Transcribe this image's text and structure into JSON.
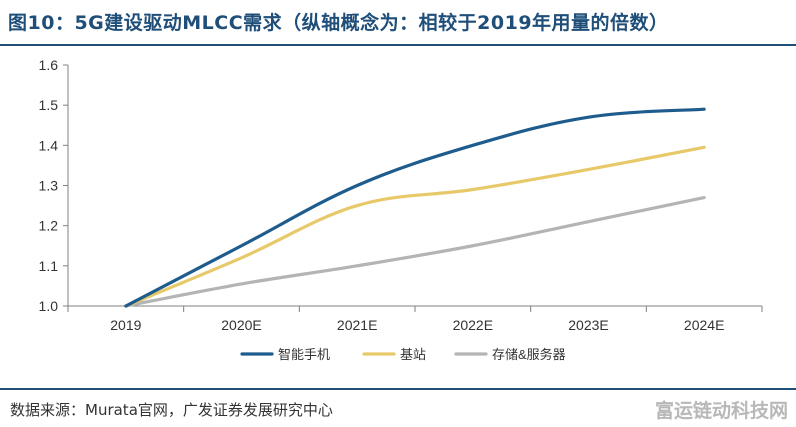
{
  "header": {
    "title": "图10：5G建设驱动MLCC需求（纵轴概念为：相较于2019年用量的倍数）"
  },
  "footer": {
    "source": "数据来源：Murata官网，广发证券发展研究中心",
    "watermark": "富运链动科技网"
  },
  "chart_data": {
    "type": "line",
    "title": "5G建设驱动MLCC需求（纵轴概念为：相较于2019年用量的倍数）",
    "xlabel": "",
    "ylabel": "",
    "categories": [
      "2019",
      "2020E",
      "2021E",
      "2022E",
      "2023E",
      "2024E"
    ],
    "ylim": [
      1.0,
      1.6
    ],
    "yticks": [
      "1.0",
      "1.1",
      "1.2",
      "1.3",
      "1.4",
      "1.5",
      "1.6"
    ],
    "grid": false,
    "legend_position": "bottom",
    "series": [
      {
        "name": "智能手机",
        "color": "#1f5c8e",
        "values": [
          1.0,
          1.15,
          1.3,
          1.4,
          1.47,
          1.49
        ]
      },
      {
        "name": "基站",
        "color": "#e8c96a",
        "values": [
          1.0,
          1.12,
          1.25,
          1.29,
          1.34,
          1.395
        ]
      },
      {
        "name": "存储&服务器",
        "color": "#b4b4b4",
        "values": [
          1.0,
          1.055,
          1.1,
          1.15,
          1.21,
          1.27
        ]
      }
    ]
  }
}
